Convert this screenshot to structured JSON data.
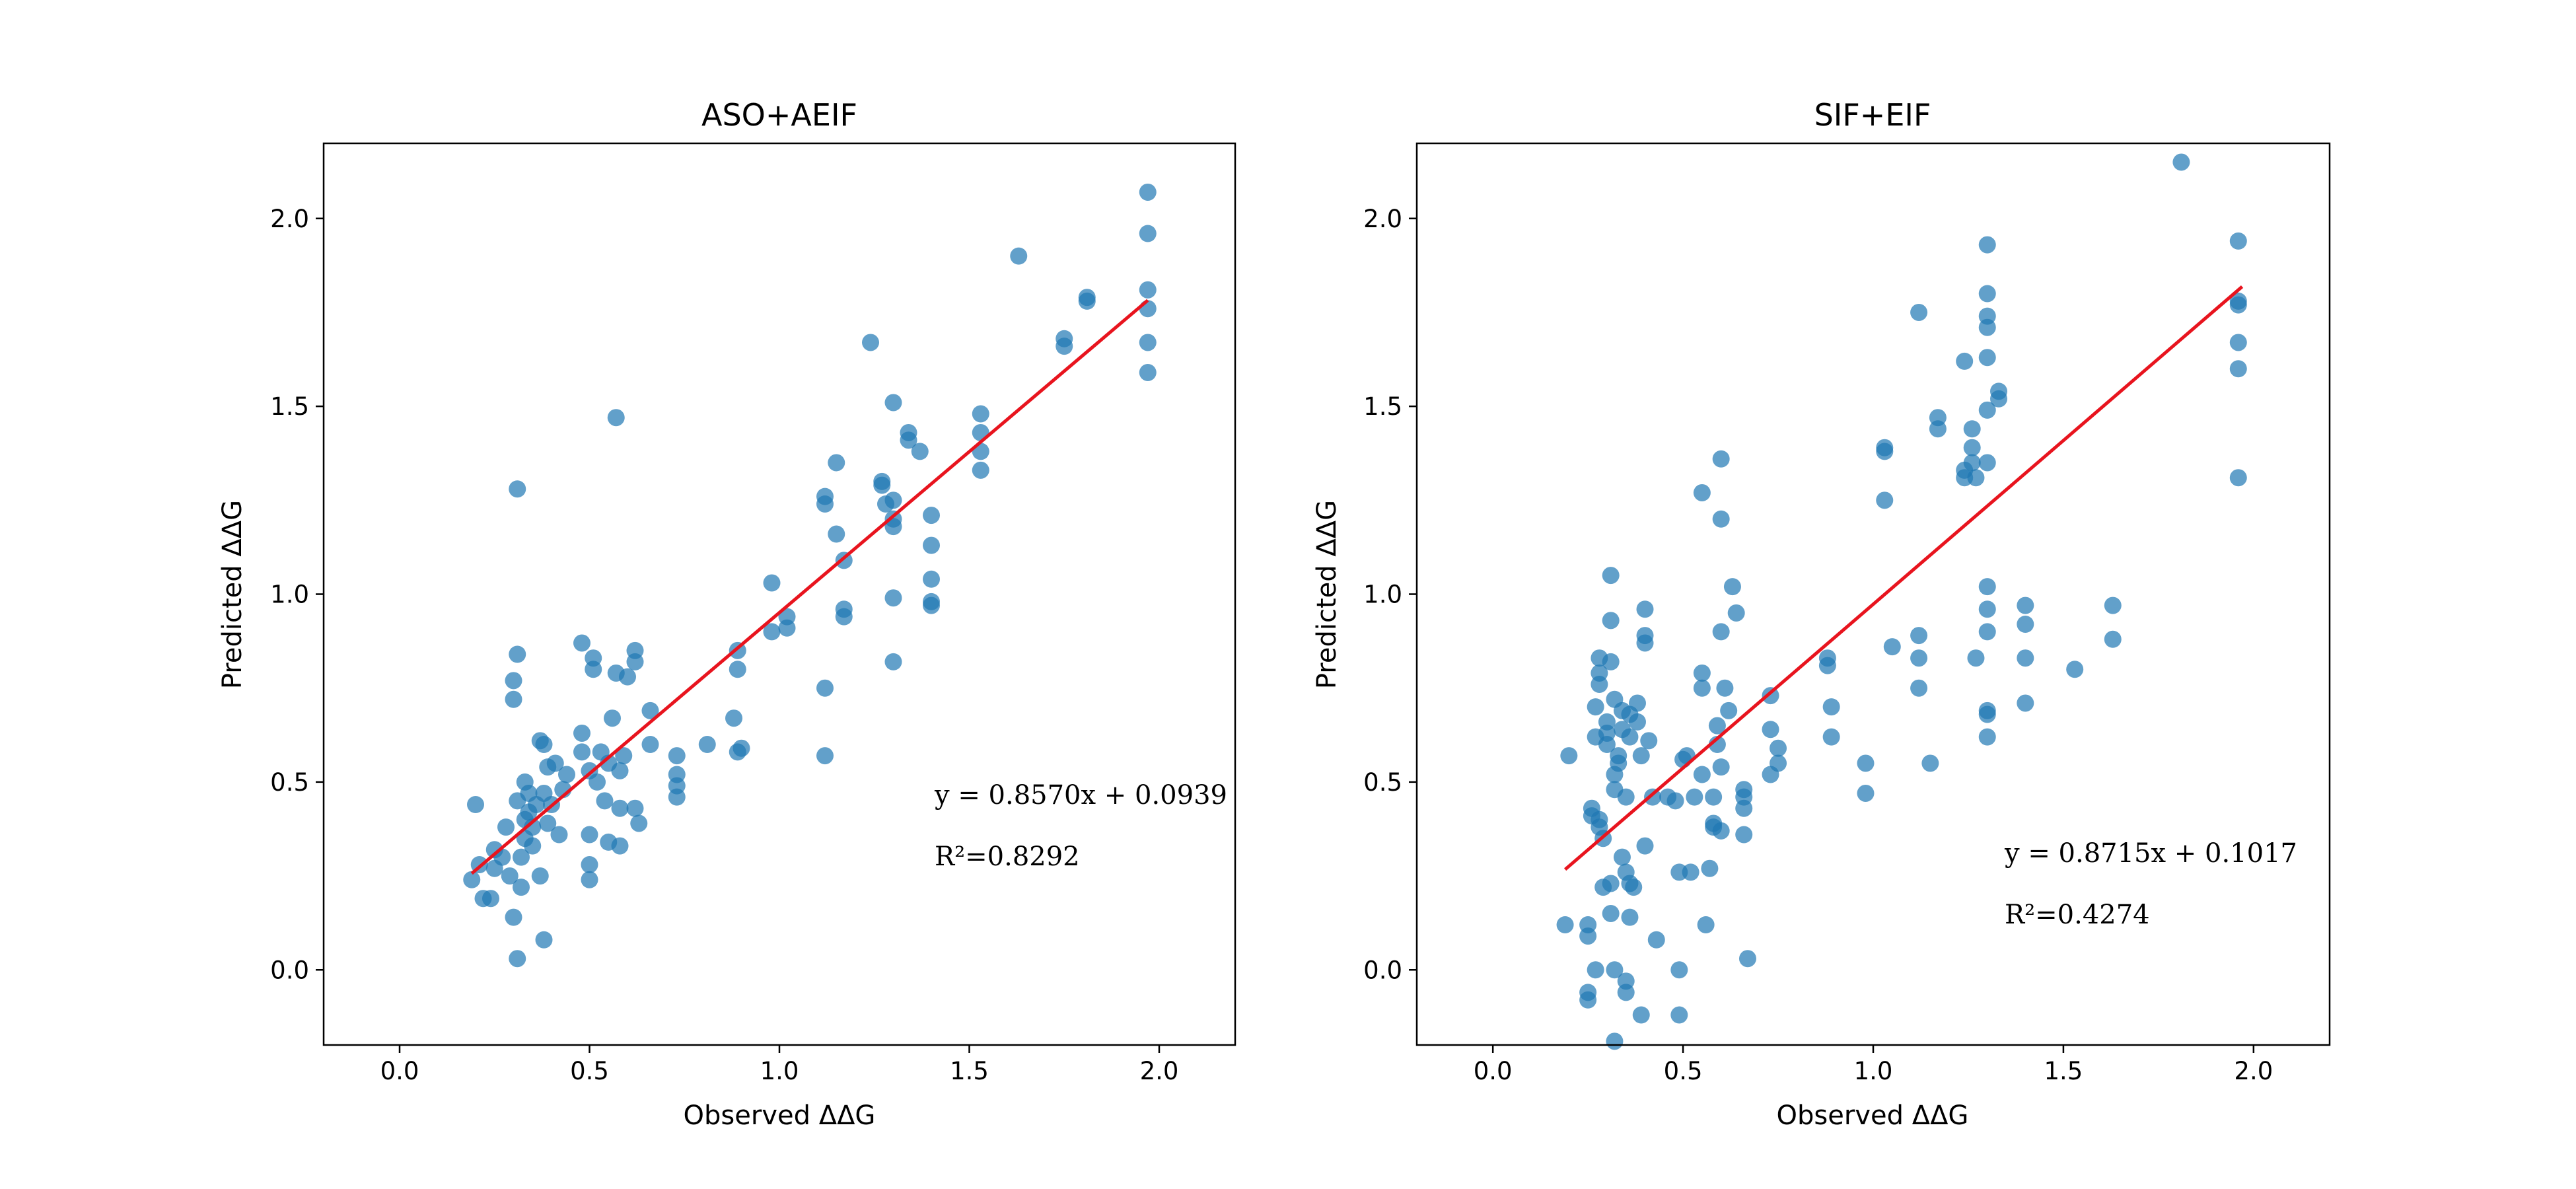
{
  "colors": {
    "points": "#1f77b4",
    "fit_line": "#e8141e",
    "axes": "#000000"
  },
  "chart_data": [
    {
      "type": "scatter",
      "title": "ASO+AEIF",
      "xlabel": "Observed ΔΔG",
      "ylabel": "Predicted ΔΔG",
      "xlim": [
        -0.2,
        2.2
      ],
      "ylim": [
        -0.2,
        2.2
      ],
      "xticks": [
        0.0,
        0.5,
        1.0,
        1.5,
        2.0
      ],
      "yticks": [
        0.0,
        0.5,
        1.0,
        1.5,
        2.0
      ],
      "xtick_labels": [
        "0.0",
        "0.5",
        "1.0",
        "1.5",
        "2.0"
      ],
      "ytick_labels": [
        "0.0",
        "0.5",
        "1.0",
        "1.5",
        "2.0"
      ],
      "equation": "y = 0.8570x + 0.0939",
      "r2_label": "R²=0.8292",
      "fit": {
        "slope": 0.857,
        "intercept": 0.0939,
        "x_range": [
          0.19,
          1.97
        ]
      },
      "points": [
        [
          0.19,
          0.24
        ],
        [
          0.2,
          0.44
        ],
        [
          0.21,
          0.28
        ],
        [
          0.22,
          0.19
        ],
        [
          0.24,
          0.19
        ],
        [
          0.25,
          0.27
        ],
        [
          0.25,
          0.32
        ],
        [
          0.27,
          0.3
        ],
        [
          0.28,
          0.38
        ],
        [
          0.29,
          0.25
        ],
        [
          0.3,
          0.77
        ],
        [
          0.3,
          0.72
        ],
        [
          0.3,
          0.14
        ],
        [
          0.31,
          1.28
        ],
        [
          0.31,
          0.84
        ],
        [
          0.31,
          0.03
        ],
        [
          0.31,
          0.45
        ],
        [
          0.32,
          0.3
        ],
        [
          0.32,
          0.22
        ],
        [
          0.33,
          0.5
        ],
        [
          0.33,
          0.4
        ],
        [
          0.33,
          0.35
        ],
        [
          0.34,
          0.47
        ],
        [
          0.34,
          0.42
        ],
        [
          0.35,
          0.38
        ],
        [
          0.35,
          0.33
        ],
        [
          0.36,
          0.44
        ],
        [
          0.37,
          0.25
        ],
        [
          0.37,
          0.61
        ],
        [
          0.38,
          0.6
        ],
        [
          0.38,
          0.47
        ],
        [
          0.38,
          0.08
        ],
        [
          0.39,
          0.39
        ],
        [
          0.39,
          0.54
        ],
        [
          0.4,
          0.44
        ],
        [
          0.41,
          0.55
        ],
        [
          0.42,
          0.36
        ],
        [
          0.43,
          0.48
        ],
        [
          0.44,
          0.52
        ],
        [
          0.48,
          0.87
        ],
        [
          0.48,
          0.63
        ],
        [
          0.48,
          0.58
        ],
        [
          0.5,
          0.53
        ],
        [
          0.5,
          0.36
        ],
        [
          0.5,
          0.28
        ],
        [
          0.5,
          0.24
        ],
        [
          0.51,
          0.8
        ],
        [
          0.51,
          0.83
        ],
        [
          0.52,
          0.5
        ],
        [
          0.53,
          0.58
        ],
        [
          0.54,
          0.45
        ],
        [
          0.55,
          0.34
        ],
        [
          0.55,
          0.55
        ],
        [
          0.56,
          0.67
        ],
        [
          0.57,
          0.79
        ],
        [
          0.57,
          1.47
        ],
        [
          0.58,
          0.43
        ],
        [
          0.58,
          0.33
        ],
        [
          0.58,
          0.53
        ],
        [
          0.59,
          0.57
        ],
        [
          0.6,
          0.78
        ],
        [
          0.62,
          0.85
        ],
        [
          0.62,
          0.82
        ],
        [
          0.62,
          0.43
        ],
        [
          0.63,
          0.39
        ],
        [
          0.66,
          0.69
        ],
        [
          0.66,
          0.6
        ],
        [
          0.73,
          0.57
        ],
        [
          0.73,
          0.52
        ],
        [
          0.73,
          0.49
        ],
        [
          0.73,
          0.46
        ],
        [
          0.81,
          0.6
        ],
        [
          0.88,
          0.67
        ],
        [
          0.89,
          0.85
        ],
        [
          0.89,
          0.8
        ],
        [
          0.89,
          0.58
        ],
        [
          0.9,
          0.59
        ],
        [
          0.98,
          1.03
        ],
        [
          0.98,
          0.9
        ],
        [
          1.02,
          0.94
        ],
        [
          1.02,
          0.91
        ],
        [
          1.12,
          1.26
        ],
        [
          1.12,
          1.24
        ],
        [
          1.12,
          0.75
        ],
        [
          1.12,
          0.57
        ],
        [
          1.15,
          1.35
        ],
        [
          1.15,
          1.16
        ],
        [
          1.17,
          1.09
        ],
        [
          1.17,
          0.96
        ],
        [
          1.17,
          0.94
        ],
        [
          1.24,
          1.67
        ],
        [
          1.27,
          1.3
        ],
        [
          1.27,
          1.29
        ],
        [
          1.28,
          1.24
        ],
        [
          1.3,
          1.51
        ],
        [
          1.3,
          1.25
        ],
        [
          1.3,
          1.2
        ],
        [
          1.3,
          1.18
        ],
        [
          1.3,
          0.99
        ],
        [
          1.3,
          0.82
        ],
        [
          1.34,
          1.43
        ],
        [
          1.34,
          1.41
        ],
        [
          1.37,
          1.38
        ],
        [
          1.4,
          1.21
        ],
        [
          1.4,
          1.13
        ],
        [
          1.4,
          1.04
        ],
        [
          1.4,
          0.98
        ],
        [
          1.4,
          0.97
        ],
        [
          1.53,
          1.48
        ],
        [
          1.53,
          1.43
        ],
        [
          1.53,
          1.38
        ],
        [
          1.53,
          1.33
        ],
        [
          1.63,
          1.9
        ],
        [
          1.75,
          1.68
        ],
        [
          1.75,
          1.66
        ],
        [
          1.81,
          1.79
        ],
        [
          1.81,
          1.78
        ],
        [
          1.97,
          2.07
        ],
        [
          1.97,
          1.96
        ],
        [
          1.97,
          1.81
        ],
        [
          1.97,
          1.76
        ],
        [
          1.97,
          1.67
        ],
        [
          1.97,
          1.59
        ]
      ]
    },
    {
      "type": "scatter",
      "title": "SIF+EIF",
      "xlabel": "Observed ΔΔG",
      "ylabel": "Predicted ΔΔG",
      "xlim": [
        -0.2,
        2.2
      ],
      "ylim": [
        -0.2,
        2.2
      ],
      "xticks": [
        0.0,
        0.5,
        1.0,
        1.5,
        2.0
      ],
      "yticks": [
        0.0,
        0.5,
        1.0,
        1.5,
        2.0
      ],
      "xtick_labels": [
        "0.0",
        "0.5",
        "1.0",
        "1.5",
        "2.0"
      ],
      "ytick_labels": [
        "0.0",
        "0.5",
        "1.0",
        "1.5",
        "2.0"
      ],
      "equation": "y = 0.8715x + 0.1017",
      "r2_label": "R²=0.4274",
      "fit": {
        "slope": 0.8715,
        "intercept": 0.1017,
        "x_range": [
          0.19,
          1.97
        ]
      },
      "points": [
        [
          0.19,
          0.12
        ],
        [
          0.2,
          0.57
        ],
        [
          0.25,
          -0.06
        ],
        [
          0.25,
          -0.08
        ],
        [
          0.25,
          0.12
        ],
        [
          0.25,
          0.09
        ],
        [
          0.26,
          0.43
        ],
        [
          0.26,
          0.41
        ],
        [
          0.27,
          0.7
        ],
        [
          0.27,
          0.62
        ],
        [
          0.27,
          0.0
        ],
        [
          0.28,
          0.83
        ],
        [
          0.28,
          0.79
        ],
        [
          0.28,
          0.76
        ],
        [
          0.28,
          0.4
        ],
        [
          0.28,
          0.38
        ],
        [
          0.29,
          0.35
        ],
        [
          0.29,
          0.22
        ],
        [
          0.3,
          0.66
        ],
        [
          0.3,
          0.63
        ],
        [
          0.3,
          0.6
        ],
        [
          0.31,
          1.05
        ],
        [
          0.31,
          0.93
        ],
        [
          0.31,
          0.82
        ],
        [
          0.31,
          0.15
        ],
        [
          0.31,
          0.23
        ],
        [
          0.32,
          0.72
        ],
        [
          0.32,
          0.48
        ],
        [
          0.32,
          0.52
        ],
        [
          0.32,
          0.0
        ],
        [
          0.32,
          -0.19
        ],
        [
          0.33,
          0.57
        ],
        [
          0.33,
          0.55
        ],
        [
          0.34,
          0.69
        ],
        [
          0.34,
          0.64
        ],
        [
          0.34,
          0.3
        ],
        [
          0.35,
          0.46
        ],
        [
          0.35,
          0.26
        ],
        [
          0.35,
          -0.03
        ],
        [
          0.35,
          -0.06
        ],
        [
          0.36,
          0.68
        ],
        [
          0.36,
          0.62
        ],
        [
          0.36,
          0.14
        ],
        [
          0.36,
          0.23
        ],
        [
          0.37,
          0.22
        ],
        [
          0.38,
          0.71
        ],
        [
          0.38,
          0.66
        ],
        [
          0.39,
          0.57
        ],
        [
          0.39,
          -0.12
        ],
        [
          0.4,
          0.33
        ],
        [
          0.4,
          0.96
        ],
        [
          0.4,
          0.89
        ],
        [
          0.4,
          0.87
        ],
        [
          0.41,
          0.61
        ],
        [
          0.42,
          0.46
        ],
        [
          0.43,
          0.08
        ],
        [
          0.46,
          0.46
        ],
        [
          0.48,
          0.45
        ],
        [
          0.49,
          0.26
        ],
        [
          0.49,
          0.0
        ],
        [
          0.49,
          -0.12
        ],
        [
          0.5,
          0.56
        ],
        [
          0.51,
          0.57
        ],
        [
          0.52,
          0.26
        ],
        [
          0.53,
          0.46
        ],
        [
          0.55,
          1.27
        ],
        [
          0.55,
          0.79
        ],
        [
          0.55,
          0.75
        ],
        [
          0.55,
          0.52
        ],
        [
          0.56,
          0.12
        ],
        [
          0.57,
          0.27
        ],
        [
          0.58,
          0.39
        ],
        [
          0.58,
          0.38
        ],
        [
          0.58,
          0.46
        ],
        [
          0.59,
          0.65
        ],
        [
          0.59,
          0.6
        ],
        [
          0.6,
          1.36
        ],
        [
          0.6,
          1.2
        ],
        [
          0.6,
          0.9
        ],
        [
          0.6,
          0.54
        ],
        [
          0.6,
          0.37
        ],
        [
          0.61,
          0.75
        ],
        [
          0.62,
          0.69
        ],
        [
          0.63,
          1.02
        ],
        [
          0.64,
          0.95
        ],
        [
          0.66,
          0.48
        ],
        [
          0.66,
          0.46
        ],
        [
          0.66,
          0.43
        ],
        [
          0.66,
          0.36
        ],
        [
          0.67,
          0.03
        ],
        [
          0.73,
          0.73
        ],
        [
          0.73,
          0.64
        ],
        [
          0.73,
          0.52
        ],
        [
          0.75,
          0.59
        ],
        [
          0.75,
          0.55
        ],
        [
          0.88,
          0.83
        ],
        [
          0.88,
          0.81
        ],
        [
          0.89,
          0.7
        ],
        [
          0.89,
          0.62
        ],
        [
          0.98,
          0.55
        ],
        [
          0.98,
          0.47
        ],
        [
          1.03,
          1.39
        ],
        [
          1.03,
          1.38
        ],
        [
          1.03,
          1.25
        ],
        [
          1.05,
          0.86
        ],
        [
          1.12,
          1.75
        ],
        [
          1.12,
          0.89
        ],
        [
          1.12,
          0.83
        ],
        [
          1.12,
          0.75
        ],
        [
          1.15,
          0.55
        ],
        [
          1.17,
          1.47
        ],
        [
          1.17,
          1.44
        ],
        [
          1.24,
          1.62
        ],
        [
          1.24,
          1.33
        ],
        [
          1.24,
          1.31
        ],
        [
          1.26,
          1.44
        ],
        [
          1.26,
          1.39
        ],
        [
          1.26,
          1.35
        ],
        [
          1.27,
          1.31
        ],
        [
          1.27,
          0.83
        ],
        [
          1.3,
          1.93
        ],
        [
          1.3,
          1.8
        ],
        [
          1.3,
          1.74
        ],
        [
          1.3,
          1.71
        ],
        [
          1.3,
          1.63
        ],
        [
          1.3,
          1.49
        ],
        [
          1.3,
          1.35
        ],
        [
          1.3,
          1.02
        ],
        [
          1.3,
          0.96
        ],
        [
          1.3,
          0.9
        ],
        [
          1.3,
          0.69
        ],
        [
          1.3,
          0.68
        ],
        [
          1.3,
          0.62
        ],
        [
          1.33,
          1.54
        ],
        [
          1.33,
          1.52
        ],
        [
          1.4,
          0.97
        ],
        [
          1.4,
          0.92
        ],
        [
          1.4,
          0.83
        ],
        [
          1.4,
          0.71
        ],
        [
          1.53,
          0.8
        ],
        [
          1.63,
          0.97
        ],
        [
          1.63,
          0.88
        ],
        [
          1.81,
          2.15
        ],
        [
          1.96,
          1.94
        ],
        [
          1.96,
          1.78
        ],
        [
          1.96,
          1.77
        ],
        [
          1.96,
          1.67
        ],
        [
          1.96,
          1.6
        ],
        [
          1.96,
          1.31
        ]
      ]
    }
  ]
}
